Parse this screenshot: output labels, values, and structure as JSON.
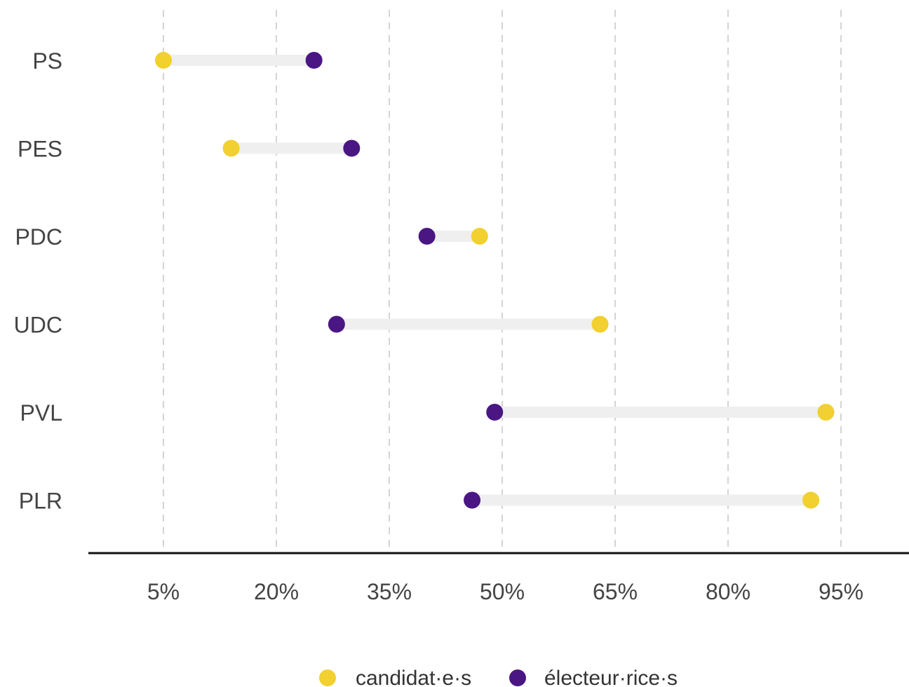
{
  "chart_data": {
    "type": "dumbbell",
    "title": "",
    "xlabel": "",
    "ylabel": "",
    "xlim": [
      0,
      100
    ],
    "x_ticks": [
      5,
      20,
      35,
      50,
      65,
      80,
      95
    ],
    "x_tick_labels": [
      "5%",
      "20%",
      "35%",
      "50%",
      "65%",
      "80%",
      "95%"
    ],
    "grid": "vertical-dashed",
    "legend_position": "bottom-center",
    "categories": [
      "PS",
      "PES",
      "PDC",
      "UDC",
      "PVL",
      "PLR"
    ],
    "series": [
      {
        "name": "candidat·e·s",
        "color": "#f1d02f",
        "values": [
          5,
          14,
          47,
          63,
          93,
          91
        ]
      },
      {
        "name": "électeur·rice·s",
        "color": "#4a1683",
        "values": [
          25,
          30,
          40,
          28,
          49,
          46
        ]
      }
    ],
    "segment_color": "#efefef",
    "grid_color": "#d4d4d4",
    "axis_color": "#111111"
  }
}
